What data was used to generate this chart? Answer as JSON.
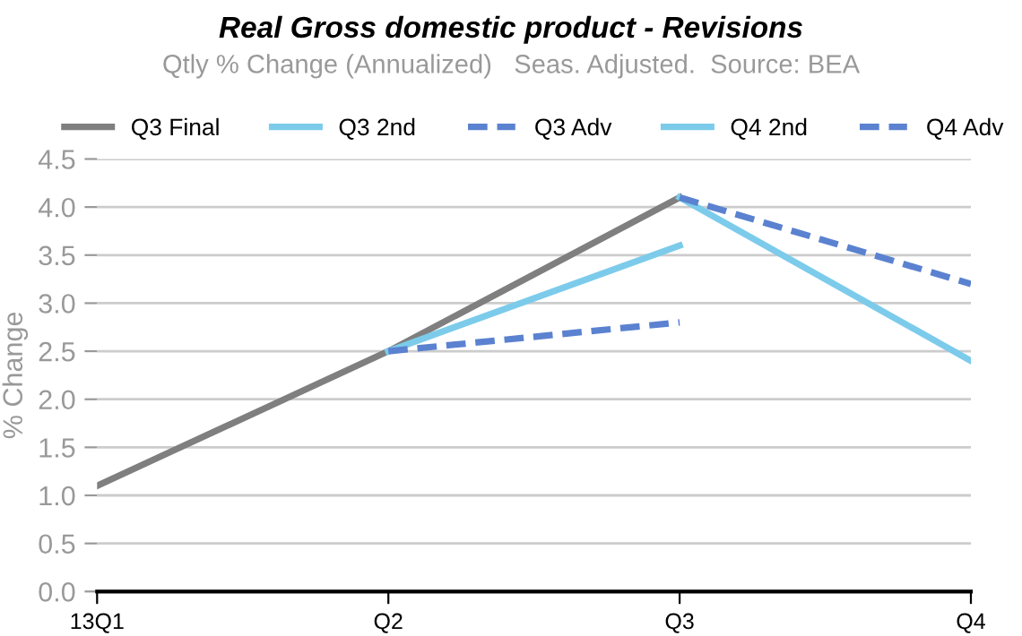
{
  "chart_data": {
    "type": "line",
    "title": "Real Gross domestic product - Revisions",
    "subtitle": "Qtly % Change (Annualized)   Seas. Adjusted.  Source: BEA",
    "ylabel": "% Change",
    "categories": [
      "13Q1",
      "Q2",
      "Q3",
      "Q4"
    ],
    "series": [
      {
        "name": "Q3 Final",
        "color": "#7f7f7f",
        "line_style": "solid",
        "values": [
          1.1,
          2.5,
          4.1,
          null
        ]
      },
      {
        "name": "Q3 2nd",
        "color": "#7ccbeb",
        "line_style": "solid",
        "values": [
          null,
          2.5,
          3.6,
          null
        ]
      },
      {
        "name": "Q3 Adv",
        "color": "#5b82d0",
        "line_style": "dashed",
        "values": [
          null,
          2.5,
          2.8,
          null
        ]
      },
      {
        "name": "Q4 2nd",
        "color": "#7ccbeb",
        "line_style": "solid",
        "values": [
          null,
          null,
          4.1,
          2.4
        ]
      },
      {
        "name": "Q4 Adv",
        "color": "#5b82d0",
        "line_style": "dashed",
        "values": [
          null,
          null,
          4.1,
          3.2
        ]
      }
    ],
    "ylim": [
      0,
      4.5
    ],
    "yticks": [
      {
        "value": 0,
        "label": "0.0"
      },
      0.5,
      {
        "value": 1,
        "label": "1.0"
      },
      1.5,
      {
        "value": 2,
        "label": "2.0"
      },
      2.5,
      {
        "value": 3,
        "label": "3.0"
      },
      3.5,
      {
        "value": 4,
        "label": "4.0"
      },
      4.5
    ],
    "grid": "y",
    "legend": "top",
    "marker": "none"
  }
}
